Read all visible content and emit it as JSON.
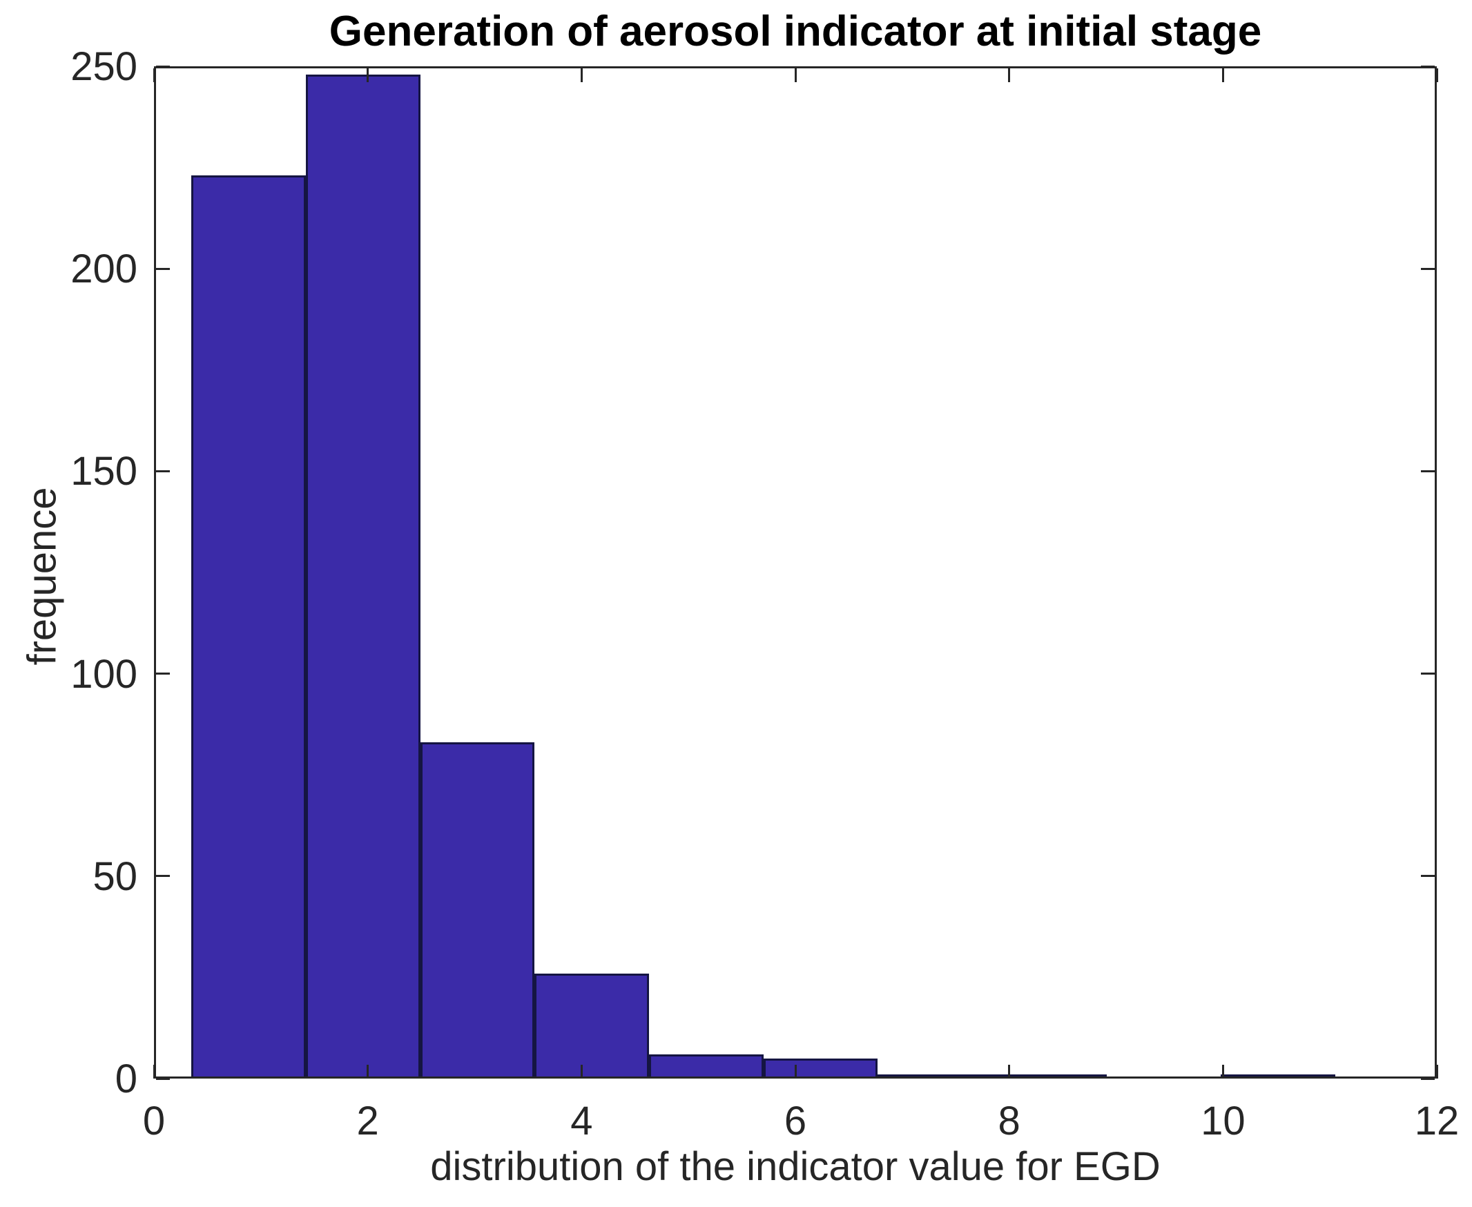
{
  "chart_data": {
    "type": "bar",
    "subtype": "histogram",
    "title": "Generation of aerosol indicator at initial stage",
    "xlabel": "distribution of the indicator value for EGD",
    "ylabel": "frequence",
    "bin_edges": [
      0.35,
      1.42,
      2.49,
      3.56,
      4.63,
      5.7,
      6.77,
      7.84,
      8.91,
      9.98,
      11.05
    ],
    "counts": [
      223,
      248,
      83,
      26,
      6,
      5,
      1,
      1,
      0,
      1
    ],
    "xlim": [
      0,
      12
    ],
    "ylim": [
      0,
      250
    ],
    "xticks": [
      0,
      2,
      4,
      6,
      8,
      10,
      12
    ],
    "yticks": [
      0,
      50,
      100,
      150,
      200,
      250
    ],
    "grid": false,
    "legend": null,
    "tick_direction": "in",
    "box": true,
    "bar_color": "#3b2ba8",
    "bar_edge_color": "#151542",
    "axis_color": "#262626",
    "background_color": "#ffffff"
  }
}
